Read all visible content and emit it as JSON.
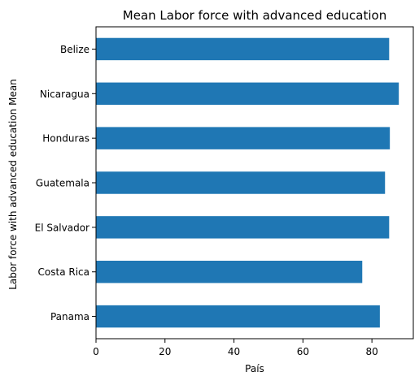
{
  "chart_data": {
    "type": "bar",
    "orientation": "horizontal",
    "title": "Mean Labor force with advanced education",
    "xlabel": "País",
    "ylabel": "Labor force with advanced education Mean",
    "categories": [
      "Belize",
      "Nicaragua",
      "Honduras",
      "Guatemala",
      "El Salvador",
      "Costa Rica",
      "Panama"
    ],
    "values": [
      85.0,
      87.8,
      85.2,
      83.8,
      85.0,
      77.2,
      82.3
    ],
    "xlim": [
      0,
      92
    ],
    "xticks": [
      "0",
      "20",
      "40",
      "60",
      "80"
    ],
    "grid": false,
    "legend": "none",
    "bar_color": "#1f77b4"
  }
}
